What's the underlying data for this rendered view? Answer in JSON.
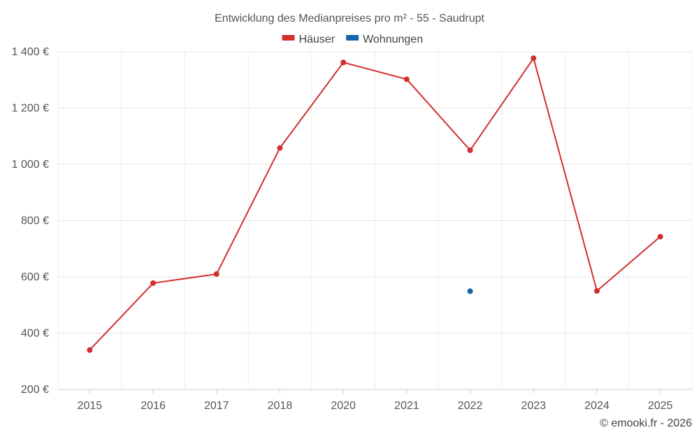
{
  "chart_data": {
    "type": "line",
    "title": "Entwicklung des Medianpreises pro m² - 55 - Saudrupt",
    "categories": [
      "2015",
      "2016",
      "2017",
      "2018",
      "2020",
      "2021",
      "2022",
      "2023",
      "2024",
      "2025"
    ],
    "series": [
      {
        "name": "Häuser",
        "color": "#d32f2f",
        "values": [
          340,
          578,
          610,
          1058,
          1362,
          1302,
          1050,
          1377,
          550,
          743
        ]
      },
      {
        "name": "Wohnungen",
        "color": "#1565a8",
        "values": [
          null,
          null,
          null,
          null,
          null,
          null,
          549,
          null,
          null,
          null
        ]
      }
    ],
    "y_ticks": [
      200,
      400,
      600,
      800,
      1000,
      1200,
      1400
    ],
    "y_tick_labels": [
      "200 €",
      "400 €",
      "600 €",
      "800 €",
      "1 000 €",
      "1 200 €",
      "1 400 €"
    ],
    "ylim": [
      200,
      1400
    ],
    "xlabel": "",
    "ylabel": "",
    "grid": true,
    "legend": "top-center",
    "credit": "© emooki.fr - 2026"
  }
}
